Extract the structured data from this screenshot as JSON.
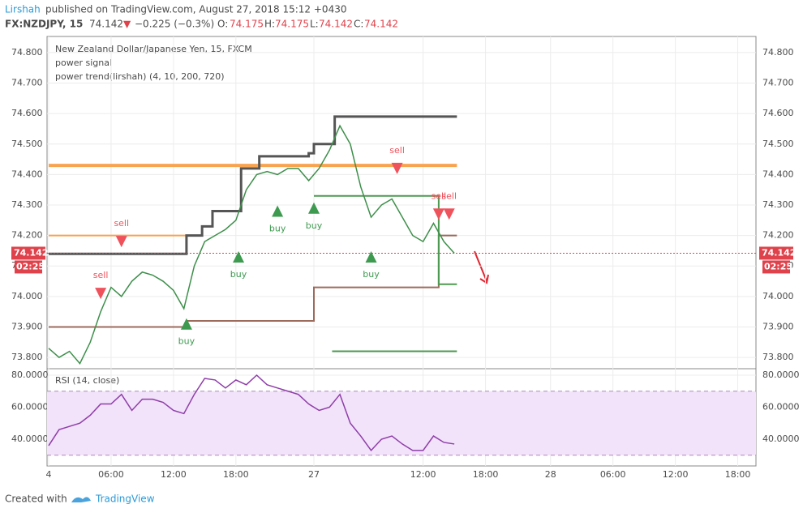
{
  "header": {
    "author": "Lirshah",
    "published": "published on TradingView.com, August 27, 2018 15:12 +0430",
    "symbol": "FX:NZDJPY, 15",
    "price": "74.142",
    "arrow": "▼",
    "change": "−0.225 (−0.3%)",
    "o_label": "O:",
    "o": "74.175",
    "h_label": "H:",
    "h": "74.175",
    "l_label": "L:",
    "l": "74.142",
    "c_label": "C:",
    "c": "74.142"
  },
  "footer": {
    "created": "Created with",
    "brand": "TradingView"
  },
  "chart_data": [
    {
      "type": "line",
      "title": "New Zealand Dollar/Japanese Yen, 15, FXCM",
      "indicators": [
        "power signal",
        "power trend(lirshah) (4, 10, 200, 720)"
      ],
      "x": [
        0,
        4,
        8,
        12,
        16,
        20,
        24,
        28,
        32,
        36,
        40,
        44,
        48,
        52,
        56,
        60,
        64,
        68,
        72,
        76,
        80,
        84,
        88,
        92,
        96,
        100,
        104,
        108,
        112,
        116,
        120,
        124,
        128,
        132,
        136,
        140,
        144,
        148,
        152,
        156
      ],
      "series": [
        {
          "color": "#3d8f4a",
          "values": [
            73.83,
            73.8,
            73.82,
            73.78,
            73.85,
            73.95,
            74.03,
            74.0,
            74.05,
            74.08,
            74.07,
            74.05,
            74.02,
            73.96,
            74.1,
            74.18,
            74.2,
            74.22,
            74.25,
            74.35,
            74.4,
            74.41,
            74.4,
            74.42,
            74.42,
            74.38,
            74.42,
            74.48,
            74.56,
            74.5,
            74.36,
            74.26,
            74.3,
            74.32,
            74.26,
            74.2,
            74.18,
            74.24,
            74.18,
            74.142
          ]
        }
      ],
      "trend_steps": [
        {
          "color": "#555555",
          "x": [
            0,
            53,
            59,
            63,
            74,
            81,
            100,
            102,
            110,
            157
          ],
          "values": [
            74.14,
            74.2,
            74.23,
            74.28,
            74.42,
            74.46,
            74.47,
            74.5,
            74.59,
            74.59
          ]
        },
        {
          "color": "#9c6b5c",
          "x": [
            0,
            53,
            102,
            150,
            157
          ],
          "values": [
            73.9,
            73.92,
            74.03,
            74.2,
            74.2
          ]
        },
        {
          "color": "#4e9a52",
          "x": [
            102,
            150,
            157
          ],
          "values": [
            74.33,
            74.04,
            74.04
          ]
        },
        {
          "color": "#4e9a52",
          "x": [
            109,
            157
          ],
          "values": [
            73.82,
            73.82
          ]
        }
      ],
      "levels": [
        {
          "value": 74.43,
          "from": 0,
          "to": 157,
          "color": "#f7a350"
        },
        {
          "value": 74.2,
          "from": 0,
          "to": 53,
          "color": "#f7a350"
        }
      ],
      "signals": [
        {
          "color": "#f0525c",
          "points": [
            {
              "label": "sell",
              "x": 28,
              "y": 74.18
            },
            {
              "label": "sell",
              "x": 20,
              "y": 74.01
            },
            {
              "label": "sell",
              "x": 134,
              "y": 74.42
            },
            {
              "label": "sell",
              "x": 150,
              "y": 74.27
            },
            {
              "label": "sell",
              "x": 154,
              "y": 74.27
            }
          ]
        },
        {
          "color": "#3d9a4f",
          "points": [
            {
              "label": "buy",
              "x": 53,
              "y": 73.91
            },
            {
              "label": "buy",
              "x": 73,
              "y": 74.13
            },
            {
              "label": "buy",
              "x": 88,
              "y": 74.28
            },
            {
              "label": "buy",
              "x": 102,
              "y": 74.29
            },
            {
              "label": "buy",
              "x": 124,
              "y": 74.13
            }
          ]
        }
      ],
      "last_price": 74.142,
      "countdown": "02:25",
      "xlim": [
        0,
        272
      ],
      "ylim": [
        73.763,
        74.853
      ],
      "yticks": [
        {
          "value": 73.8,
          "label": "73.800"
        },
        {
          "value": 73.9,
          "label": "73.900"
        },
        {
          "value": 74.0,
          "label": "74.000"
        },
        {
          "value": 74.1,
          "label": "74.100"
        },
        {
          "value": 74.2,
          "label": "74.200"
        },
        {
          "value": 74.3,
          "label": "74.300"
        },
        {
          "value": 74.4,
          "label": "74.400"
        },
        {
          "value": 74.5,
          "label": "74.500"
        },
        {
          "value": 74.6,
          "label": "74.600"
        },
        {
          "value": 74.7,
          "label": "74.700"
        },
        {
          "value": 74.8,
          "label": "74.800"
        }
      ],
      "xticks": [
        {
          "value": 0,
          "label": "4"
        },
        {
          "value": 24,
          "label": "06:00"
        },
        {
          "value": 48,
          "label": "12:00"
        },
        {
          "value": 72,
          "label": "18:00"
        },
        {
          "value": 102,
          "label": "27"
        },
        {
          "value": 144,
          "label": "12:00"
        },
        {
          "value": 168,
          "label": "18:00"
        },
        {
          "value": 193,
          "label": "28"
        },
        {
          "value": 217,
          "label": "06:00"
        },
        {
          "value": 241,
          "label": "12:00"
        },
        {
          "value": 265,
          "label": "18:00"
        }
      ],
      "grid": true
    },
    {
      "type": "line",
      "title": "RSI (14, close)",
      "x": [
        0,
        4,
        8,
        12,
        16,
        20,
        24,
        28,
        32,
        36,
        40,
        44,
        48,
        52,
        56,
        60,
        64,
        68,
        72,
        76,
        80,
        84,
        88,
        92,
        96,
        100,
        104,
        108,
        112,
        116,
        120,
        124,
        128,
        132,
        136,
        140,
        144,
        148,
        152,
        156
      ],
      "series": [
        {
          "color": "#8e3ea8",
          "values": [
            36,
            46,
            48,
            50,
            55,
            62,
            62,
            68,
            58,
            65,
            65,
            63,
            58,
            56,
            68,
            78,
            77,
            72,
            77,
            74,
            80,
            74,
            72,
            70,
            68,
            62,
            58,
            60,
            68,
            50,
            42,
            33,
            40,
            42,
            37,
            33,
            33,
            42,
            38,
            37
          ]
        }
      ],
      "band": [
        30,
        70
      ],
      "xlim": [
        0,
        272
      ],
      "ylim": [
        23.3,
        84.05
      ],
      "yticks": [
        {
          "value": 40,
          "label": "40.0000"
        },
        {
          "value": 60,
          "label": "60.0000"
        },
        {
          "value": 80,
          "label": "80.0000"
        }
      ],
      "grid": true
    }
  ]
}
